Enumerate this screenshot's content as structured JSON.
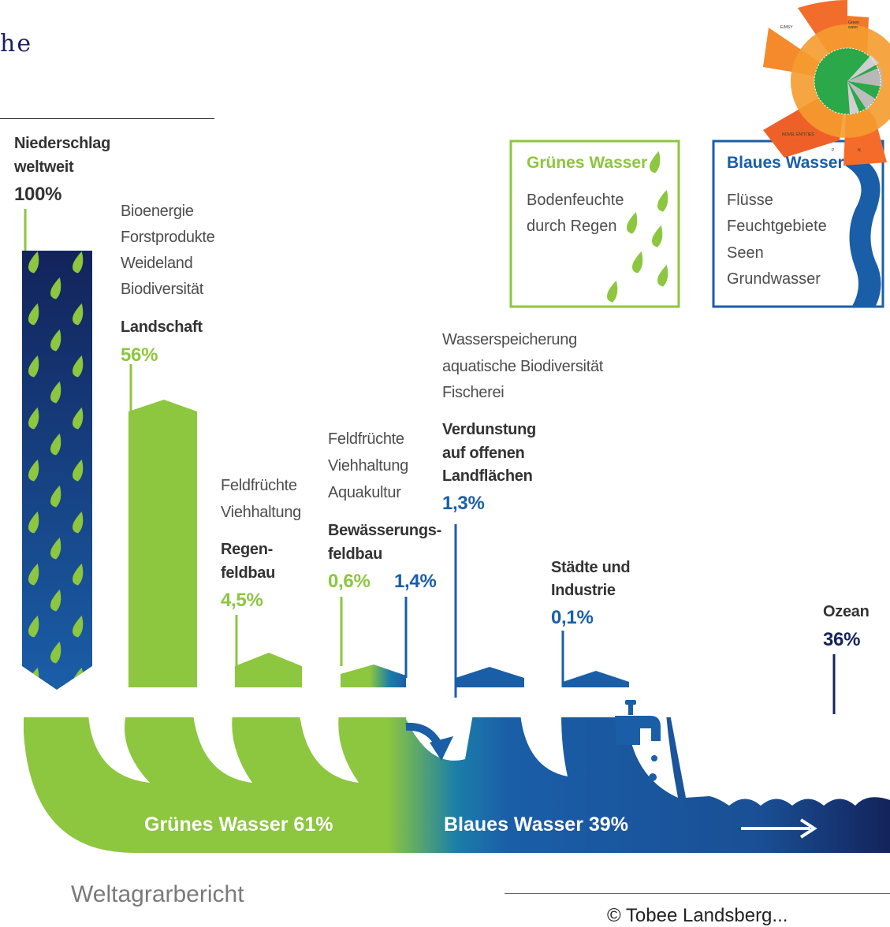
{
  "header": {
    "title_fragment": "he",
    "footer_left": "Weltagrarbericht",
    "footer_right": "© Tobee Landsberg..."
  },
  "boxes": {
    "green": {
      "title": "Grünes Wasser",
      "lines": [
        "Bodenfeuchte",
        "durch Regen"
      ]
    },
    "blue": {
      "title": "Blaues Wasser",
      "lines": [
        "Flüsse",
        "Feuchtgebiete",
        "Seen",
        "Grundwasser"
      ]
    }
  },
  "columns": {
    "niederschlag": {
      "line1": "Niederschlag",
      "line2": "weltweit",
      "value": "100%"
    },
    "landschaft": {
      "uses": [
        "Bioenergie",
        "Forstprodukte",
        "Weideland",
        "Biodiversität"
      ],
      "name": "Landschaft",
      "value": "56%"
    },
    "regenfeldbau": {
      "uses": [
        "Feldfrüchte",
        "Viehhaltung"
      ],
      "name_1": "Regen-",
      "name_2": "feldbau",
      "value": "4,5%"
    },
    "bewaesserung": {
      "uses": [
        "Feldfrüchte",
        "Viehhaltung",
        "Aquakultur"
      ],
      "name_1": "Bewässerungs-",
      "name_2": "feldbau",
      "value_green": "0,6%",
      "value_blue": "1,4%"
    },
    "verdunstung": {
      "uses": [
        "Wasserspeicherung",
        "aquatische Biodiversität",
        "Fischerei"
      ],
      "name_1": "Verdunstung",
      "name_2": "auf offenen",
      "name_3": "Landflächen",
      "value": "1,3%"
    },
    "staedte": {
      "name_1": "Städte und",
      "name_2": "Industrie",
      "value": "0,1%"
    },
    "ozean": {
      "name": "Ozean",
      "value": "36%"
    }
  },
  "flows": {
    "green_label": "Grünes Wasser 61%",
    "blue_label": "Blaues Wasser 39%"
  },
  "inset": {
    "labels": [
      "Green water",
      "NOVEL ENTITIES",
      "E/MSY",
      "P",
      "N"
    ]
  },
  "colors": {
    "green": "#8dc63f",
    "blue": "#1a5ea8",
    "navy": "#13235b",
    "orange": "#f26d2b"
  }
}
